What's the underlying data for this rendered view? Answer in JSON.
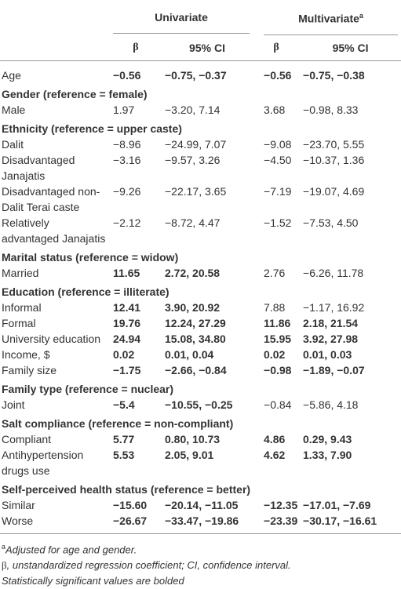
{
  "header": {
    "univariate": "Univariate",
    "multivariate": "Multivariate",
    "multivariate_note": "a",
    "columns": [
      "β",
      "95% CI",
      "β",
      "95% CI"
    ]
  },
  "rows": [
    {
      "label": "Age",
      "cells": [
        "−0.56",
        "−0.75, −0.37",
        "−0.56",
        "−0.75, −0.38"
      ],
      "bold": [
        true,
        true,
        true,
        true
      ]
    },
    {
      "section": "Gender (reference = female)"
    },
    {
      "label": "Male",
      "cells": [
        "1.97",
        "−3.20, 7.14",
        "3.68",
        "−0.98, 8.33"
      ],
      "bold": [
        false,
        false,
        false,
        false
      ]
    },
    {
      "section": "Ethnicity (reference = upper caste)"
    },
    {
      "label": "Dalit",
      "cells": [
        "−8.96",
        "−24.99, 7.07",
        "−9.08",
        "−23.70, 5.55"
      ],
      "bold": [
        false,
        false,
        false,
        false
      ]
    },
    {
      "label": "Disadvantaged Janajatis",
      "cells": [
        "−3.16",
        "−9.57, 3.26",
        "−4.50",
        "−10.37, 1.36"
      ],
      "bold": [
        false,
        false,
        false,
        false
      ]
    },
    {
      "label": "Disadvantaged non-Dalit Terai caste",
      "cells": [
        "−9.26",
        "−22.17, 3.65",
        "−7.19",
        "−19.07, 4.69"
      ],
      "bold": [
        false,
        false,
        false,
        false
      ]
    },
    {
      "label": "Relatively advantaged Janajatis",
      "cells": [
        "−2.12",
        "−8.72, 4.47",
        "−1.52",
        "−7.53, 4.50"
      ],
      "bold": [
        false,
        false,
        false,
        false
      ]
    },
    {
      "section": "Marital status (reference = widow)"
    },
    {
      "label": "Married",
      "cells": [
        "11.65",
        "2.72, 20.58",
        "2.76",
        "−6.26, 11.78"
      ],
      "bold": [
        true,
        true,
        false,
        false
      ]
    },
    {
      "section": "Education (reference = illiterate)"
    },
    {
      "label": "Informal",
      "cells": [
        "12.41",
        "3.90, 20.92",
        "7.88",
        "−1.17, 16.92"
      ],
      "bold": [
        true,
        true,
        false,
        false
      ]
    },
    {
      "label": "Formal",
      "cells": [
        "19.76",
        "12.24, 27.29",
        "11.86",
        "2.18, 21.54"
      ],
      "bold": [
        true,
        true,
        true,
        true
      ]
    },
    {
      "label": "University education",
      "cells": [
        "24.94",
        "15.08, 34.80",
        "15.95",
        "3.92, 27.98"
      ],
      "bold": [
        true,
        true,
        true,
        true
      ]
    },
    {
      "label": "Income, $",
      "cells": [
        "0.02",
        "0.01, 0.04",
        "0.02",
        "0.01, 0.03"
      ],
      "bold": [
        true,
        true,
        true,
        true
      ]
    },
    {
      "label": "Family size",
      "cells": [
        "−1.75",
        "−2.66, −0.84",
        "−0.98",
        "−1.89, −0.07"
      ],
      "bold": [
        true,
        true,
        true,
        true
      ]
    },
    {
      "section": "Family type (reference = nuclear)"
    },
    {
      "label": "Joint",
      "cells": [
        "−5.4",
        "−10.55, −0.25",
        "−0.84",
        "−5.86, 4.18"
      ],
      "bold": [
        true,
        true,
        false,
        false
      ]
    },
    {
      "section": "Salt compliance (reference = non-compliant)"
    },
    {
      "label": "Compliant",
      "cells": [
        "5.77",
        "0.80, 10.73",
        "4.86",
        "0.29, 9.43"
      ],
      "bold": [
        true,
        true,
        true,
        true
      ]
    },
    {
      "label": "Antihypertension drugs use",
      "cells": [
        "5.53",
        "2.05, 9.01",
        "4.62",
        "1.33, 7.90"
      ],
      "bold": [
        true,
        true,
        true,
        true
      ]
    },
    {
      "section": "Self-perceived health status (reference = better)"
    },
    {
      "label": "Similar",
      "cells": [
        "−15.60",
        "−20.14, −11.05",
        "−12.35",
        "−17.01, −7.69"
      ],
      "bold": [
        true,
        true,
        true,
        true
      ]
    },
    {
      "label": "Worse",
      "cells": [
        "−26.67",
        "−33.47, −19.86",
        "−23.39",
        "−30.17, −16.61"
      ],
      "bold": [
        true,
        true,
        true,
        true
      ]
    }
  ],
  "footnotes": [
    {
      "mark": "a",
      "text": "Adjusted for age and gender."
    },
    {
      "symbol": "β",
      "text": ", unstandardized regression coefficient; CI, confidence interval."
    },
    {
      "text": "Statistically significant values are bolded"
    }
  ]
}
